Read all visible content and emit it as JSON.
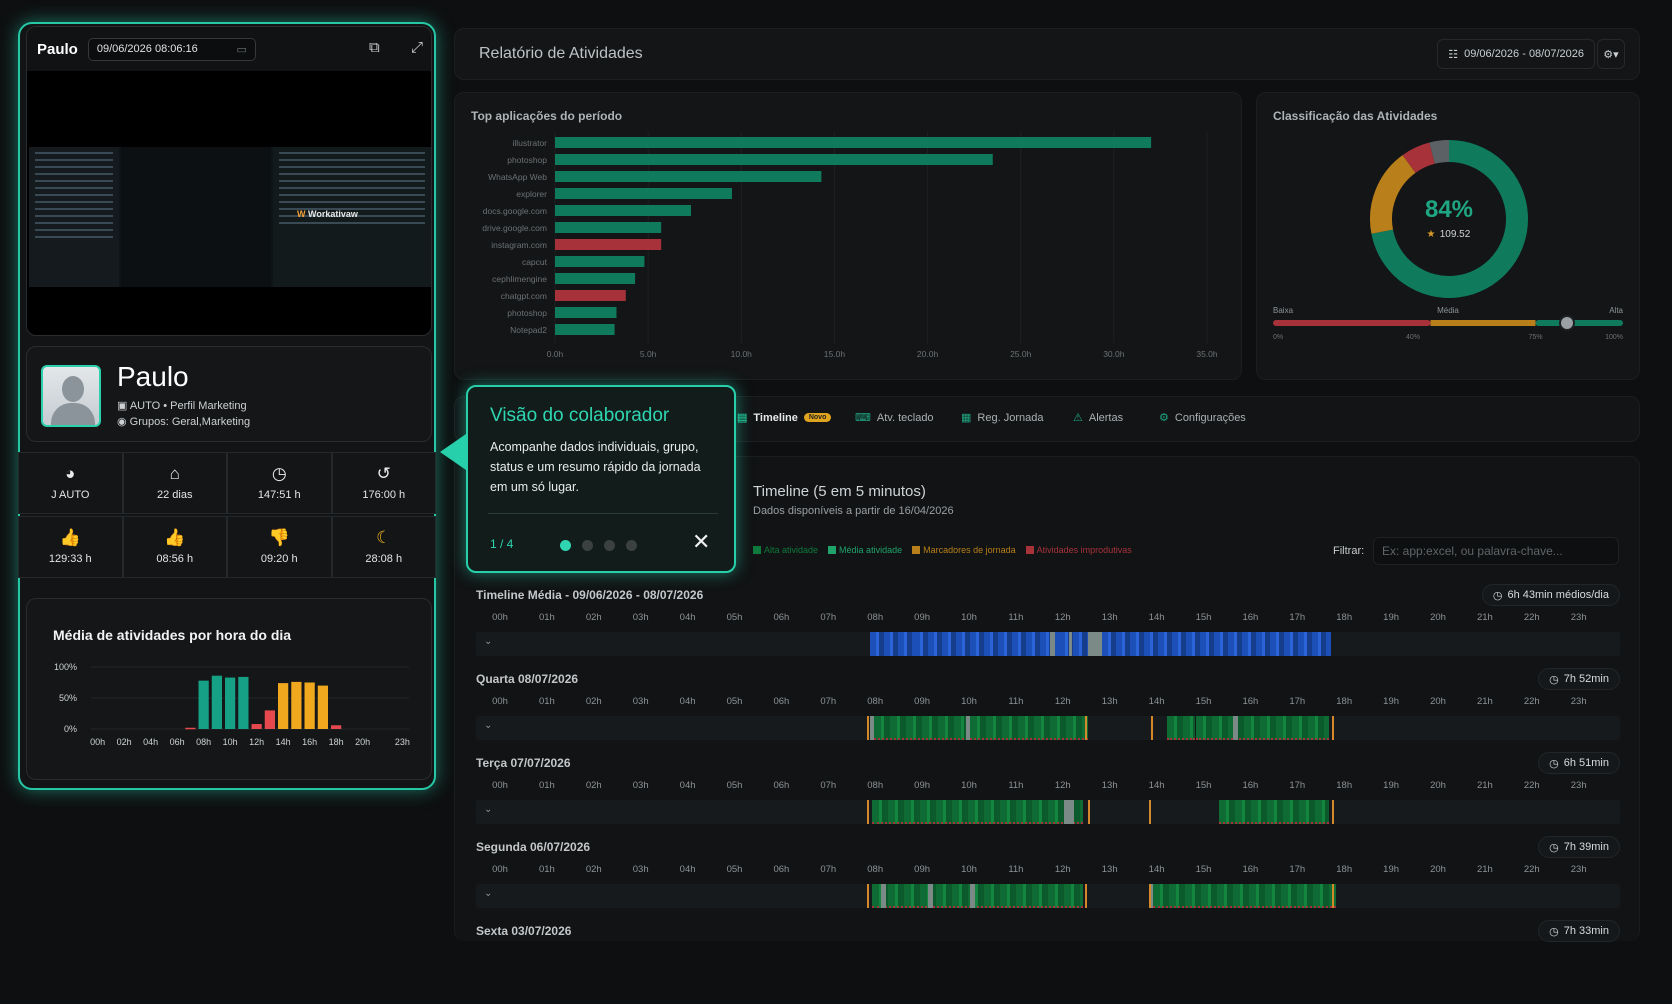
{
  "viewer": {
    "name": "Paulo",
    "datetime": "09/06/2026 08:06:16",
    "open_icon": "external-link-icon",
    "expand_icon": "expand-icon",
    "calendar_icon": "calendar-icon"
  },
  "thumbnail": {
    "logo_text": "Workativaw"
  },
  "profile": {
    "name": "Paulo",
    "profile_line": "AUTO • Perfil Marketing",
    "groups_line": "Grupos: Geral,Marketing"
  },
  "stats_row1": [
    {
      "icon": "dashboard-icon",
      "glyph": "◕",
      "value": "J AUTO"
    },
    {
      "icon": "home-icon",
      "glyph": "⌂",
      "value": "22 dias"
    },
    {
      "icon": "clock-icon",
      "glyph": "◷",
      "value": "147:51 h"
    },
    {
      "icon": "history-icon",
      "glyph": "↺",
      "value": "176:00 h"
    }
  ],
  "stats_row2": [
    {
      "icon": "thumbs-up-high-icon",
      "glyph": "👍",
      "color": "#2bd0ac",
      "value": "129:33 h"
    },
    {
      "icon": "thumbs-up-icon",
      "glyph": "👍",
      "color": "#e6e9eb",
      "value": "08:56 h"
    },
    {
      "icon": "thumbs-down-icon",
      "glyph": "👎",
      "color": "#e5484d",
      "value": "09:20 h"
    },
    {
      "icon": "moon-icon",
      "glyph": "☾",
      "color": "#f0b323",
      "value": "28:08 h"
    }
  ],
  "hourly_chart": {
    "title": "Média de atividades por hora do dia",
    "chart_data": {
      "type": "bar",
      "title": "Média de atividades por hora do dia",
      "y_ticks": [
        "100%",
        "50%",
        "0%"
      ],
      "x_ticks": [
        "00h",
        "02h",
        "04h",
        "06h",
        "08h",
        "10h",
        "12h",
        "14h",
        "16h",
        "18h",
        "20h",
        "23h"
      ],
      "ylim": [
        0,
        100
      ],
      "bars": [
        {
          "hour": 7,
          "value": 2,
          "color": "#e5484d"
        },
        {
          "hour": 8,
          "value": 78,
          "color": "#16a085"
        },
        {
          "hour": 9,
          "value": 86,
          "color": "#16a085"
        },
        {
          "hour": 10,
          "value": 83,
          "color": "#16a085"
        },
        {
          "hour": 11,
          "value": 84,
          "color": "#16a085"
        },
        {
          "hour": 12,
          "value": 8,
          "color": "#e5484d"
        },
        {
          "hour": 13,
          "value": 30,
          "color": "#e5484d"
        },
        {
          "hour": 14,
          "value": 74,
          "color": "#f0a81f"
        },
        {
          "hour": 15,
          "value": 76,
          "color": "#f0a81f"
        },
        {
          "hour": 16,
          "value": 75,
          "color": "#f0a81f"
        },
        {
          "hour": 17,
          "value": 70,
          "color": "#f0a81f"
        },
        {
          "hour": 18,
          "value": 6,
          "color": "#e5484d"
        }
      ]
    }
  },
  "report": {
    "title": "Relatório de Atividades",
    "date_range": "09/06/2026 - 08/07/2026"
  },
  "top_apps": {
    "title": "Top aplicações do período",
    "chart_data": {
      "type": "bar",
      "orientation": "horizontal",
      "title": "Top aplicações do período",
      "categories": [
        "illustrator",
        "photoshop",
        "WhatsApp Web",
        "explorer",
        "docs.google.com",
        "drive.google.com",
        "instagram.com",
        "capcut",
        "cephlimengine",
        "chatgpt.com",
        "photoshop",
        "Notepad2"
      ],
      "values": [
        32.0,
        23.5,
        14.3,
        9.5,
        7.3,
        5.7,
        5.7,
        4.8,
        4.3,
        3.8,
        3.3,
        3.2
      ],
      "colors": [
        "#0f7a5c",
        "#0f7a5c",
        "#0f7a5c",
        "#0f7a5c",
        "#0f7a5c",
        "#0f7a5c",
        "#a8323a",
        "#0f7a5c",
        "#0f7a5c",
        "#a8323a",
        "#0f7a5c",
        "#0f7a5c"
      ],
      "x_ticks": [
        "0.0h",
        "5.0h",
        "10.0h",
        "15.0h",
        "20.0h",
        "25.0h",
        "30.0h",
        "35.0h"
      ],
      "xlim": [
        0,
        35
      ]
    }
  },
  "classification": {
    "title": "Classificação das Atividades",
    "percent": "84%",
    "score": "109.52",
    "star_icon": "star-icon",
    "chart_data": {
      "type": "pie",
      "labels": [
        "Alta",
        "Média",
        "Improdutiva",
        "Outros"
      ],
      "values": [
        72,
        18,
        6,
        4
      ],
      "colors": [
        "#0f7a5c",
        "#b97f1a",
        "#a8323a",
        "#5c6166"
      ]
    },
    "scale": {
      "labels": [
        "Baixa",
        "Média",
        "Alta"
      ],
      "ticks": [
        "0%",
        "40%",
        "75%",
        "100%"
      ],
      "value": 84
    }
  },
  "tabs": [
    {
      "label": "Timeline",
      "icon": "timeline-icon",
      "badge": "Novo",
      "active": true
    },
    {
      "label": "Atv. teclado",
      "icon": "keyboard-icon"
    },
    {
      "label": "Reg. Jornada",
      "icon": "calendar-icon"
    },
    {
      "label": "Alertas",
      "icon": "alert-icon"
    },
    {
      "label": "Configurações",
      "icon": "gear-icon"
    }
  ],
  "timeline": {
    "title": "Timeline (5 em 5 minutos)",
    "subtitle": "Dados disponíveis a partir de 16/04/2026",
    "legend": [
      {
        "label": "Alta atividade",
        "color": "#0f7a3c"
      },
      {
        "label": "Média atividade",
        "color": "#1fa36b"
      },
      {
        "label": "Marcadores de jornada",
        "color": "#b97f1a"
      },
      {
        "label": "Atividades improdutivas",
        "color": "#a8323a"
      }
    ],
    "filter_label": "Filtrar:",
    "filter_placeholder": "Ex: app:excel, ou palavra-chave...",
    "hours": [
      "00h",
      "01h",
      "02h",
      "03h",
      "04h",
      "05h",
      "06h",
      "07h",
      "08h",
      "09h",
      "10h",
      "11h",
      "12h",
      "13h",
      "14h",
      "15h",
      "16h",
      "17h",
      "18h",
      "19h",
      "20h",
      "21h",
      "22h",
      "23h"
    ],
    "days": [
      {
        "title": "Timeline Média - 09/06/2026 - 08/07/2026",
        "total": "6h 43min médios/dia",
        "kind": "avg"
      },
      {
        "title": "Quarta 08/07/2026",
        "total": "7h 52min",
        "kind": "day"
      },
      {
        "title": "Terça 07/07/2026",
        "total": "6h 51min",
        "kind": "day"
      },
      {
        "title": "Segunda 06/07/2026",
        "total": "7h 39min",
        "kind": "day"
      },
      {
        "title": "Sexta 03/07/2026",
        "total": "7h 33min",
        "kind": "day"
      }
    ]
  },
  "tour": {
    "title": "Visão do colaborador",
    "text": "Acompanhe dados individuais, grupo, status e um resumo rápido da jornada em um só lugar.",
    "step": "1 / 4",
    "close_icon": "close-icon"
  }
}
